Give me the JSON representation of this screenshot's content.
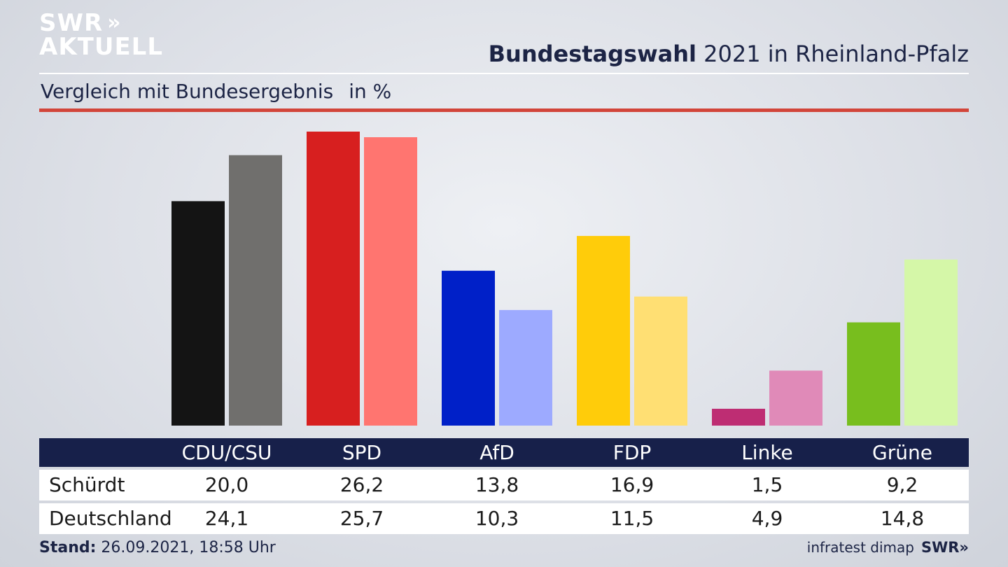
{
  "logo": {
    "line1": "SWR",
    "line1_chevrons": "»",
    "line2": "AKTUELL"
  },
  "title": {
    "bold": "Bundestagswahl",
    "rest": " 2021 in Rheinland-Pfalz"
  },
  "subtitle": {
    "text": "Vergleich mit Bundesergebnis",
    "unit": "in %"
  },
  "chart_data": {
    "type": "bar",
    "categories": [
      "CDU/CSU",
      "SPD",
      "AfD",
      "FDP",
      "Linke",
      "Grüne"
    ],
    "series": [
      {
        "name": "Schürdt",
        "values": [
          20.0,
          26.2,
          13.8,
          16.9,
          1.5,
          9.2
        ]
      },
      {
        "name": "Deutschland",
        "values": [
          24.1,
          25.7,
          10.3,
          11.5,
          4.9,
          14.8
        ]
      }
    ],
    "value_labels": {
      "Schürdt": [
        "20,0",
        "26,2",
        "13,8",
        "16,9",
        "1,5",
        "9,2"
      ],
      "Deutschland": [
        "24,1",
        "25,7",
        "10,3",
        "11,5",
        "4,9",
        "14,8"
      ]
    },
    "colors": {
      "Schürdt": [
        "#141414",
        "#d71f1f",
        "#0020c8",
        "#ffcc0a",
        "#be2d73",
        "#78be1e"
      ],
      "Deutschland": [
        "#706f6d",
        "#ff7570",
        "#9daaff",
        "#ffdf73",
        "#e08ab8",
        "#d5f7a8"
      ]
    },
    "ylim": [
      0,
      26.2
    ],
    "grid": false,
    "legend": "table-below"
  },
  "footer": {
    "stand_label": "Stand:",
    "stand_value": " 26.09.2021, 18:58 Uhr",
    "source": "infratest dimap",
    "brand": "SWR»"
  }
}
